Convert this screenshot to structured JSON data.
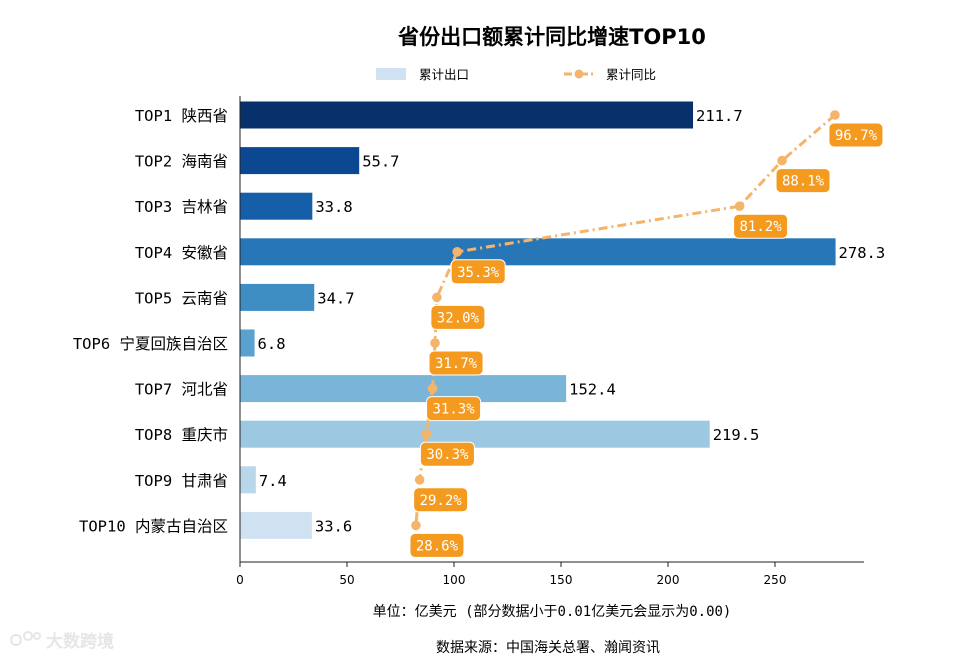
{
  "chart_data": {
    "type": "bar",
    "orientation": "horizontal",
    "title": "省份出口额累计同比增速TOP10",
    "legend": [
      "累计出口",
      "累计同比"
    ],
    "legend_position": "top-center",
    "categories": [
      "TOP1 陕西省",
      "TOP2 海南省",
      "TOP3 吉林省",
      "TOP4 安徽省",
      "TOP5 云南省",
      "TOP6 宁夏回族自治区",
      "TOP7 河北省",
      "TOP8 重庆市",
      "TOP9 甘肃省",
      "TOP10 内蒙古自治区"
    ],
    "series": [
      {
        "name": "累计出口",
        "kind": "bar",
        "values": [
          211.7,
          55.7,
          33.8,
          278.3,
          34.7,
          6.8,
          152.4,
          219.5,
          7.4,
          33.6
        ],
        "labels": [
          "211.7",
          "55.7",
          "33.8",
          "278.3",
          "34.7",
          "6.8",
          "152.4",
          "219.5",
          "7.4",
          "33.6"
        ]
      },
      {
        "name": "累计同比",
        "kind": "line",
        "values": [
          96.7,
          88.1,
          81.2,
          35.3,
          32.0,
          31.7,
          31.3,
          30.3,
          29.2,
          28.6
        ],
        "labels": [
          "96.7%",
          "88.1%",
          "81.2%",
          "35.3%",
          "32.0%",
          "31.7%",
          "31.3%",
          "30.3%",
          "29.2%",
          "28.6%"
        ]
      }
    ],
    "bar_colors": [
      "#08306b",
      "#0b4891",
      "#155fa8",
      "#2777b8",
      "#3e8ec4",
      "#5aa1cf",
      "#79b5d9",
      "#9cc9e1",
      "#bad6eb",
      "#d0e1f2"
    ],
    "line_color": "#f5b46b",
    "label_box_color": "#f39a1f",
    "x_axis": {
      "min": 0,
      "max": 290,
      "ticks": [
        0,
        50,
        100,
        150,
        200,
        250
      ]
    },
    "unit_note": "单位：亿美元  (部分数据小于0.01亿美元会显示为0.00)",
    "source_note": "数据来源：中国海关总署、瀚闻资讯"
  },
  "watermark": "大数跨境"
}
